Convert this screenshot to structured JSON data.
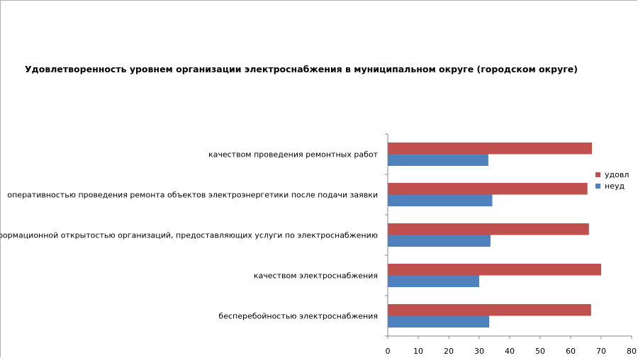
{
  "chart_data": {
    "type": "bar",
    "orientation": "horizontal",
    "title": "Удовлетворенность уровнем организации электроснабжения в муниципальном округе (городском округе)",
    "categories": [
      "бесперебойностью электроснабжения",
      "качеством электроснабжения",
      "информационной открытостью организаций, предоставляющих услуги по электроснабжению",
      "оперативностью проведения ремонта объектов электроэнергетики после подачи заявки",
      "качеством проведения ремонтных работ"
    ],
    "series": [
      {
        "name": "неуд",
        "color": "#4f81bd",
        "values": [
          33.3,
          30.0,
          33.7,
          34.3,
          33.0
        ]
      },
      {
        "name": "удовл",
        "color": "#c0504d",
        "values": [
          66.7,
          70.0,
          66.0,
          65.5,
          67.0
        ]
      }
    ],
    "xlim": [
      0,
      80
    ],
    "xticks": [
      "0",
      "10",
      "20",
      "30",
      "40",
      "50",
      "60",
      "70",
      "80"
    ],
    "grid": false,
    "legend": "right",
    "legend_order": [
      "удовл",
      "неуд"
    ]
  }
}
